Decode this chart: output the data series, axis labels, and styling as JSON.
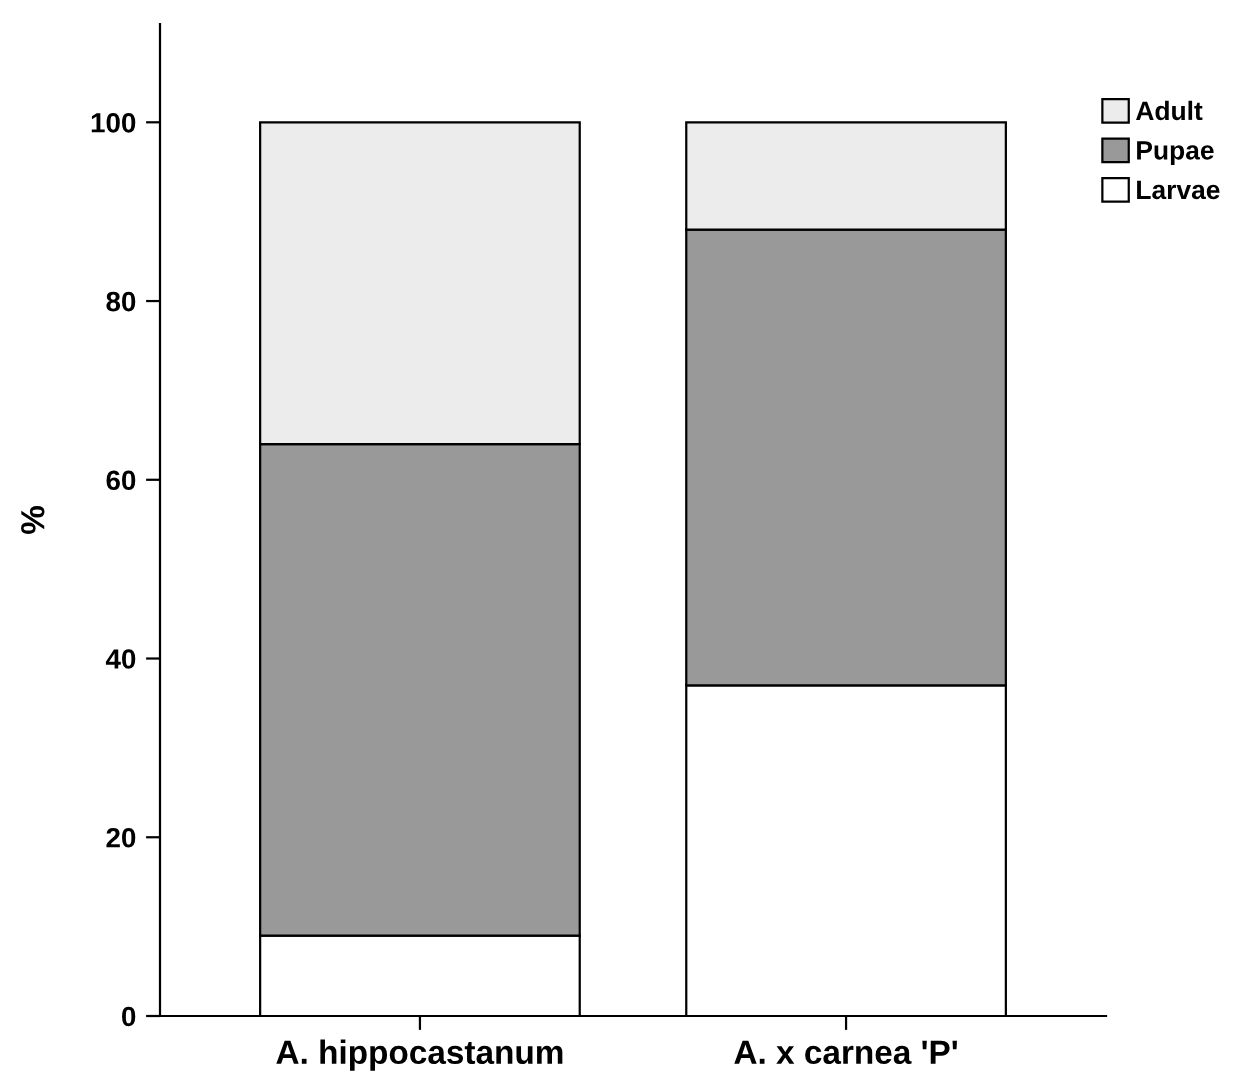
{
  "chart_data": {
    "type": "bar",
    "stacked": true,
    "ylabel": "%",
    "categories": [
      "A. hippocastanum",
      "A. x carnea 'P'"
    ],
    "series": [
      {
        "name": "Larvae",
        "color": "#ffffff",
        "values": [
          9,
          37
        ]
      },
      {
        "name": "Pupae",
        "color": "#999999",
        "values": [
          55,
          51
        ]
      },
      {
        "name": "Adult",
        "color": "#ececec",
        "values": [
          36,
          12
        ]
      }
    ],
    "ylim": [
      0,
      111
    ],
    "yticks": [
      0,
      20,
      40,
      60,
      80,
      100
    ],
    "grid": false,
    "legend": "top right"
  }
}
